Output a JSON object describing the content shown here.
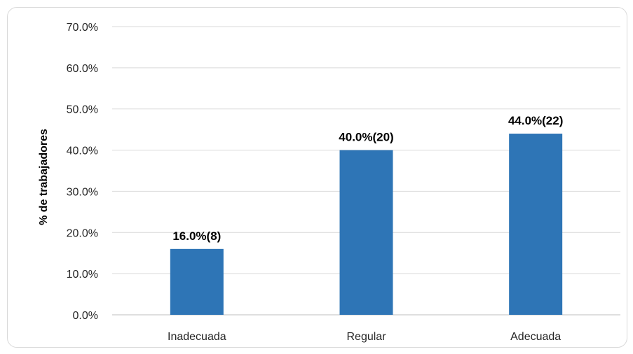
{
  "chart_data": {
    "type": "bar",
    "title": "",
    "xlabel": "",
    "ylabel": "% de trabajadores",
    "categories": [
      "Inadecuada",
      "Regular",
      "Adecuada"
    ],
    "values": [
      16.0,
      40.0,
      44.0
    ],
    "data_labels": [
      "16.0%(8)",
      "40.0%(20)",
      "44.0%(22)"
    ],
    "ylim": [
      0,
      70
    ],
    "yticks": [
      0,
      10,
      20,
      30,
      40,
      50,
      60,
      70
    ],
    "ytick_labels": [
      "0.0%",
      "10.0%",
      "20.0%",
      "30.0%",
      "40.0%",
      "50.0%",
      "60.0%",
      "70.0%"
    ],
    "grid": true,
    "legend": "none",
    "colors": {
      "bar": "#2E75B6",
      "grid": "#D9D9D9",
      "axis": "#BFBFBF"
    }
  }
}
